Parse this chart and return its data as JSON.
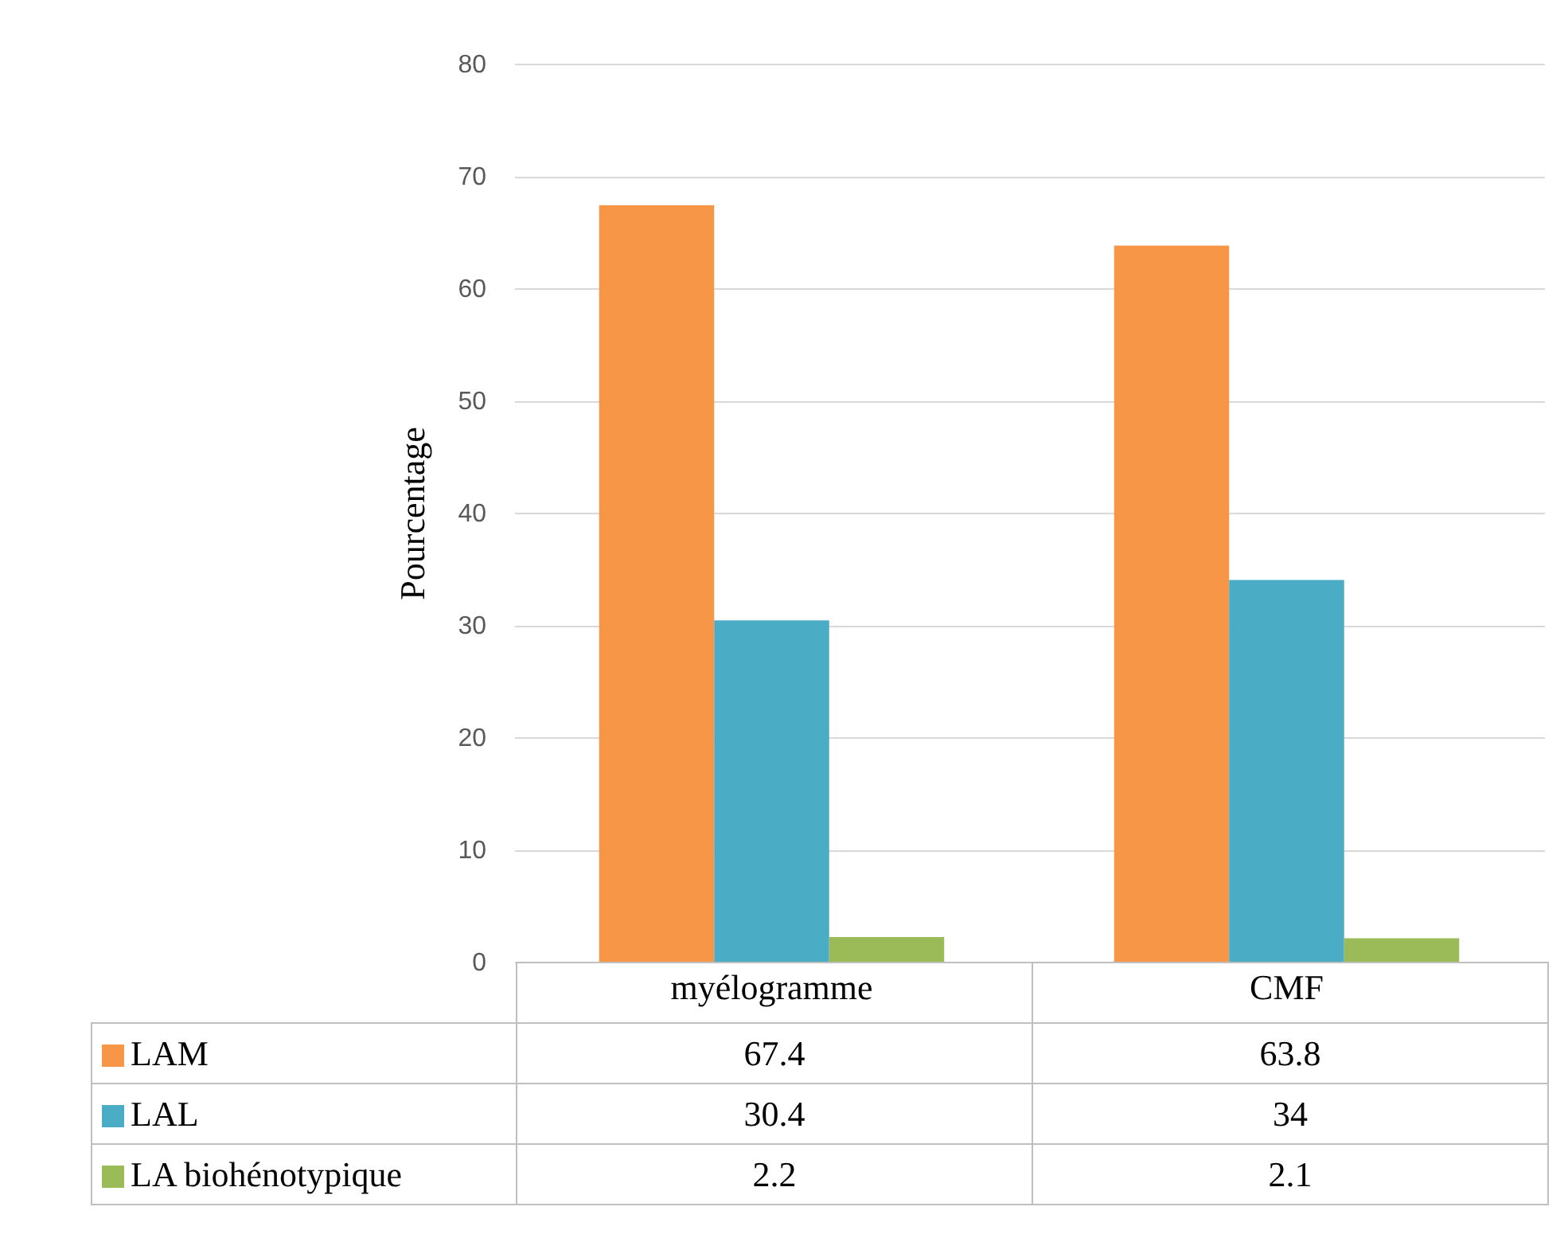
{
  "chart_data": {
    "type": "bar",
    "ylabel": "Pourcentage",
    "categories": [
      "myélogramme",
      "CMF"
    ],
    "series": [
      {
        "name": "LAM",
        "color": "#f79646",
        "values": [
          67.4,
          63.8
        ]
      },
      {
        "name": "LAL",
        "color": "#4bacc6",
        "values": [
          30.4,
          34
        ]
      },
      {
        "name": "LA biohénotypique",
        "color": "#9bbb59",
        "values": [
          2.2,
          2.1
        ]
      }
    ],
    "ylim": [
      0,
      80
    ],
    "yticks": [
      0,
      10,
      20,
      30,
      40,
      50,
      60,
      70,
      80
    ],
    "grid": "y",
    "legend": "bottom left",
    "data_labels": true
  }
}
